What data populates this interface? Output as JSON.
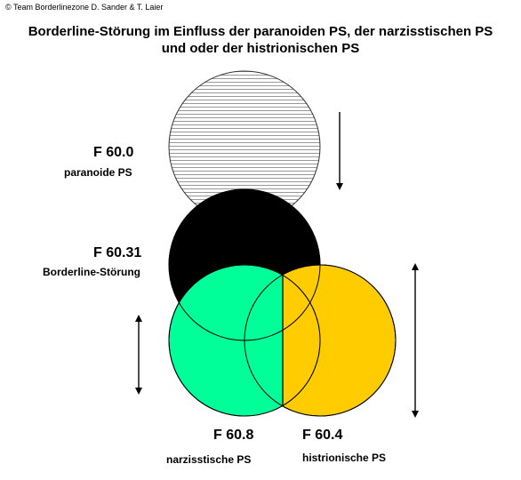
{
  "copyright": "© Team Borderlinezone D. Sander & T. Laier",
  "title": {
    "line1": "Borderline-Störung im Einfluss der paranoiden PS, der narzisstischen PS",
    "line2": "und oder der histrionischen PS"
  },
  "circles": {
    "paranoid": {
      "code": "F 60.0",
      "name": "paranoide PS",
      "fill": "hatched",
      "color": "#ffffff"
    },
    "borderline": {
      "code": "F 60.31",
      "name": "Borderline-Störung",
      "color": "#000000"
    },
    "narcissistic": {
      "code": "F 60.8",
      "name": "narzisstische PS",
      "color": "#00ff99"
    },
    "histrionic": {
      "code": "F 60.4",
      "name": "histrionische PS",
      "color": "#ffcc00"
    }
  },
  "arrows": [
    {
      "name": "paranoid-arrow",
      "direction": "down"
    },
    {
      "name": "narcissistic-arrow",
      "direction": "both"
    },
    {
      "name": "histrionic-arrow",
      "direction": "both"
    }
  ]
}
